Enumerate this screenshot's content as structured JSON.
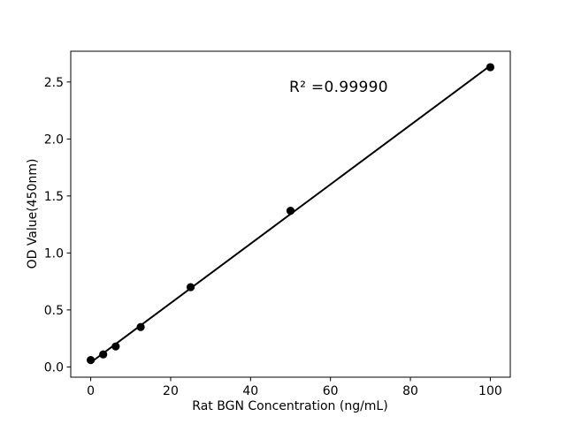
{
  "chart_data": {
    "type": "scatter",
    "title": "",
    "xlabel": "Rat BGN Concentration (ng/mL)",
    "ylabel": "OD Value(450nm)",
    "annotation": "R² =0.99990",
    "x": [
      0,
      3.125,
      6.25,
      12.5,
      25,
      50,
      100
    ],
    "y": [
      0.06,
      0.11,
      0.18,
      0.35,
      0.7,
      1.37,
      2.63
    ],
    "fit": {
      "type": "linear",
      "r_squared": 0.9999
    },
    "xlim": [
      -5,
      105
    ],
    "ylim": [
      -0.09,
      2.77
    ],
    "xticks": [
      0,
      20,
      40,
      60,
      80,
      100
    ],
    "yticks": [
      0,
      0.5,
      1,
      1.5,
      2,
      2.5
    ],
    "grid": false,
    "legend": null,
    "colors": {
      "marker": "#000000",
      "line": "#000000",
      "background": "#ffffff",
      "text": "#000000"
    }
  }
}
